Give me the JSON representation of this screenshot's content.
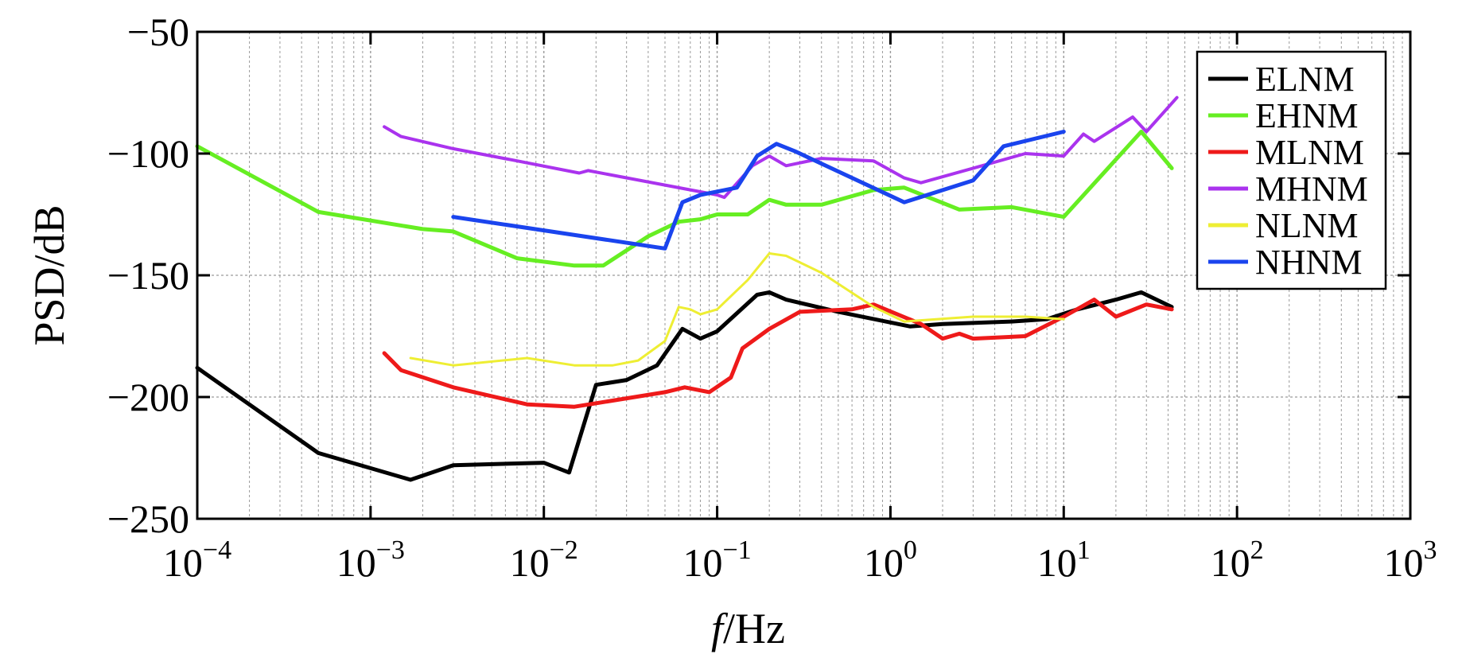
{
  "chart_data": {
    "type": "line",
    "xscale": "log",
    "xlim": [
      0.0001,
      1000
    ],
    "ylim": [
      -250,
      -50
    ],
    "grid": true,
    "legend_position": "top-right",
    "xlabel_italic": "f",
    "xlabel_rest": "/Hz",
    "ylabel": "PSD/dB",
    "y_ticks": [
      -50,
      -100,
      -150,
      -200,
      -250
    ],
    "y_tick_labels": [
      "−50",
      "−100",
      "−150",
      "−200",
      "−250"
    ],
    "x_ticks": [
      {
        "value": 0.0001,
        "base": "10",
        "exp": "−4"
      },
      {
        "value": 0.001,
        "base": "10",
        "exp": "−3"
      },
      {
        "value": 0.01,
        "base": "10",
        "exp": "−2"
      },
      {
        "value": 0.1,
        "base": "10",
        "exp": "−1"
      },
      {
        "value": 1,
        "base": "10",
        "exp": "0"
      },
      {
        "value": 10,
        "base": "10",
        "exp": "1"
      },
      {
        "value": 100,
        "base": "10",
        "exp": "2"
      },
      {
        "value": 1000,
        "base": "10",
        "exp": "3"
      }
    ],
    "series": [
      {
        "name": "ELNM",
        "color": "#000000",
        "width": 5,
        "x": [
          0.0001,
          0.0005,
          0.0017,
          0.003,
          0.01,
          0.014,
          0.02,
          0.03,
          0.045,
          0.063,
          0.08,
          0.1,
          0.17,
          0.2,
          0.25,
          0.5,
          1.3,
          2,
          5,
          8,
          12,
          20,
          28,
          42
        ],
        "y": [
          -188,
          -223,
          -234,
          -228,
          -227,
          -231,
          -195,
          -193,
          -187,
          -172,
          -176,
          -173,
          -158,
          -157,
          -160,
          -165,
          -171,
          -170,
          -169,
          -168,
          -164,
          -160,
          -157,
          -163
        ]
      },
      {
        "name": "EHNM",
        "color": "#66ee22",
        "width": 5,
        "x": [
          0.0001,
          0.0005,
          0.002,
          0.003,
          0.007,
          0.015,
          0.022,
          0.04,
          0.06,
          0.08,
          0.1,
          0.15,
          0.2,
          0.25,
          0.4,
          0.8,
          1.2,
          2.5,
          5,
          10,
          28,
          42
        ],
        "y": [
          -97,
          -124,
          -131,
          -132,
          -143,
          -146,
          -146,
          -134,
          -128,
          -127,
          -125,
          -125,
          -119,
          -121,
          -121,
          -115,
          -114,
          -123,
          -122,
          -126,
          -91,
          -106
        ]
      },
      {
        "name": "MLNM",
        "color": "#ee1a1a",
        "width": 5,
        "x": [
          0.0012,
          0.0015,
          0.003,
          0.008,
          0.015,
          0.05,
          0.065,
          0.09,
          0.12,
          0.14,
          0.2,
          0.3,
          0.6,
          0.8,
          1.5,
          2,
          2.5,
          3,
          6,
          10,
          15,
          20,
          30,
          42
        ],
        "y": [
          -182,
          -189,
          -196,
          -203,
          -204,
          -198,
          -196,
          -198,
          -192,
          -180,
          -172,
          -165,
          -164,
          -162,
          -170,
          -176,
          -174,
          -176,
          -175,
          -167,
          -160,
          -167,
          -162,
          -164
        ]
      },
      {
        "name": "MHNM",
        "color": "#aa33ee",
        "width": 4,
        "x": [
          0.0012,
          0.0015,
          0.003,
          0.007,
          0.016,
          0.018,
          0.1,
          0.11,
          0.16,
          0.2,
          0.25,
          0.4,
          0.8,
          1.2,
          1.5,
          3,
          6,
          10,
          13,
          15,
          25,
          30,
          45
        ],
        "y": [
          -89,
          -93,
          -98,
          -103,
          -108,
          -107,
          -117,
          -118,
          -105,
          -101,
          -105,
          -102,
          -103,
          -110,
          -112,
          -106,
          -100,
          -101,
          -92,
          -95,
          -85,
          -91,
          -77
        ]
      },
      {
        "name": "NLNM",
        "color": "#eeee33",
        "width": 3,
        "x": [
          0.0017,
          0.003,
          0.008,
          0.015,
          0.025,
          0.035,
          0.05,
          0.06,
          0.07,
          0.08,
          0.1,
          0.15,
          0.2,
          0.25,
          0.4,
          0.8,
          1.2,
          3,
          6,
          10
        ],
        "y": [
          -184,
          -187,
          -184,
          -187,
          -187,
          -185,
          -177,
          -163,
          -164,
          -166,
          -164,
          -152,
          -141,
          -142,
          -149,
          -163,
          -169,
          -167,
          -167,
          -168
        ]
      },
      {
        "name": "NHNM",
        "color": "#1a44ee",
        "width": 5,
        "x": [
          0.003,
          0.05,
          0.063,
          0.08,
          0.13,
          0.17,
          0.22,
          0.28,
          1.2,
          3,
          4.5,
          10
        ],
        "y": [
          -126,
          -139,
          -120,
          -117,
          -114,
          -101,
          -96,
          -99,
          -120,
          -111,
          -97,
          -91
        ]
      }
    ]
  }
}
